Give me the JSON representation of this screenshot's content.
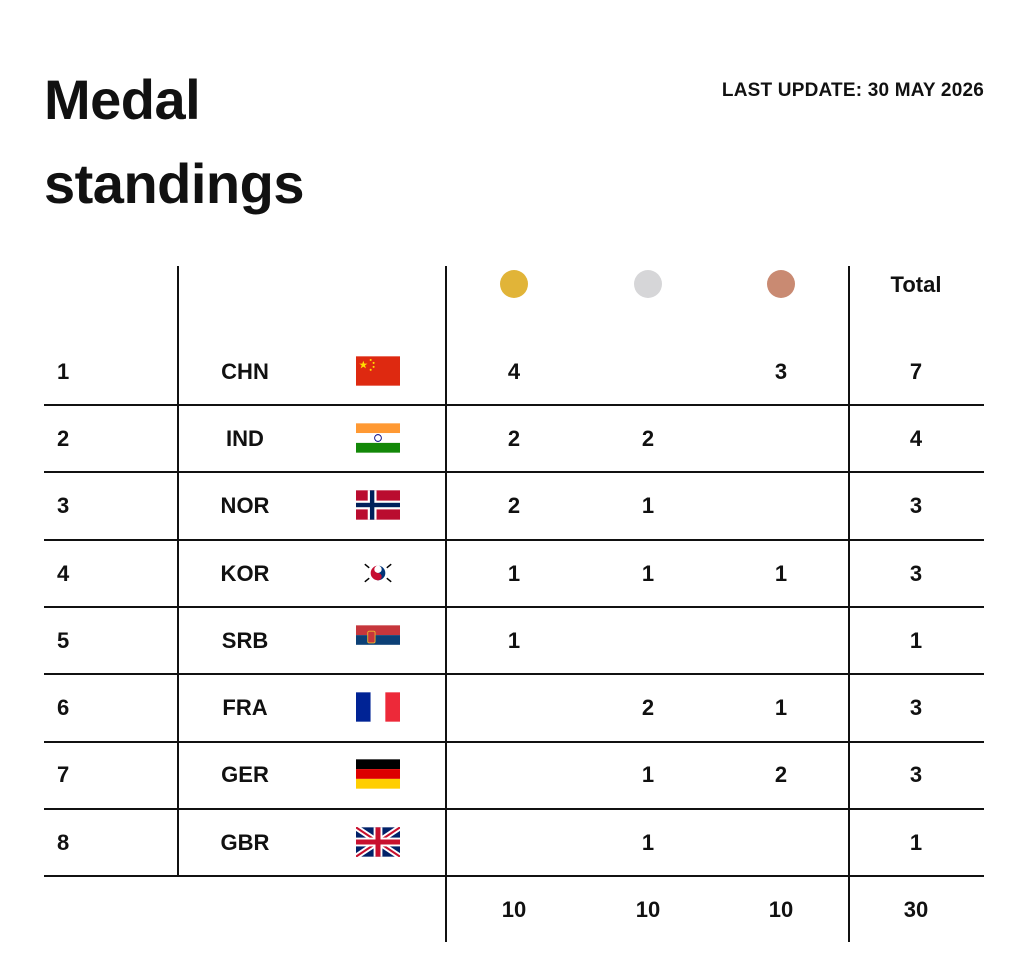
{
  "header": {
    "title_line1": "Medal",
    "title_line2": "standings",
    "last_update": "LAST UPDATE: 30 MAY 2026"
  },
  "columns": {
    "gold_icon": "gold-medal-icon",
    "silver_icon": "silver-medal-icon",
    "bronze_icon": "bronze-medal-icon",
    "total_label": "Total"
  },
  "colors": {
    "gold": "#E1B438",
    "silver": "#D6D6D8",
    "bronze": "#C98A72"
  },
  "rows": [
    {
      "rank": "1",
      "country": "CHN",
      "flag": "china-flag-icon",
      "gold": "4",
      "silver": "",
      "bronze": "3",
      "total": "7"
    },
    {
      "rank": "2",
      "country": "IND",
      "flag": "india-flag-icon",
      "gold": "2",
      "silver": "2",
      "bronze": "",
      "total": "4"
    },
    {
      "rank": "3",
      "country": "NOR",
      "flag": "norway-flag-icon",
      "gold": "2",
      "silver": "1",
      "bronze": "",
      "total": "3"
    },
    {
      "rank": "4",
      "country": "KOR",
      "flag": "south-korea-flag-icon",
      "gold": "1",
      "silver": "1",
      "bronze": "1",
      "total": "3"
    },
    {
      "rank": "5",
      "country": "SRB",
      "flag": "serbia-flag-icon",
      "gold": "1",
      "silver": "",
      "bronze": "",
      "total": "1"
    },
    {
      "rank": "6",
      "country": "FRA",
      "flag": "france-flag-icon",
      "gold": "",
      "silver": "2",
      "bronze": "1",
      "total": "3"
    },
    {
      "rank": "7",
      "country": "GER",
      "flag": "germany-flag-icon",
      "gold": "",
      "silver": "1",
      "bronze": "2",
      "total": "3"
    },
    {
      "rank": "8",
      "country": "GBR",
      "flag": "uk-flag-icon",
      "gold": "",
      "silver": "1",
      "bronze": "",
      "total": "1"
    }
  ],
  "totals": {
    "gold": "10",
    "silver": "10",
    "bronze": "10",
    "total": "30"
  }
}
